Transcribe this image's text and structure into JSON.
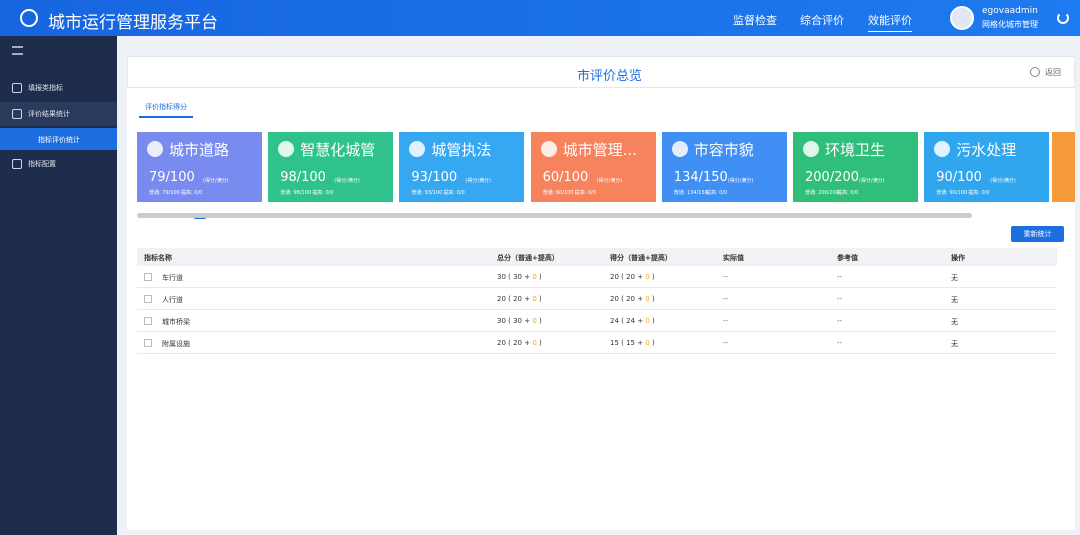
{
  "header": {
    "title": "城市运行管理服务平台",
    "nav": [
      "监督检查",
      "综合评价",
      "效能评价"
    ],
    "user": {
      "name": "egovaadmin",
      "role": "网格化城市管理"
    }
  },
  "sidebar": {
    "items": [
      {
        "label": "填报类指标"
      },
      {
        "label": "评价结果统计",
        "children": [
          "指标评价统计"
        ]
      },
      {
        "label": "指标配置"
      }
    ]
  },
  "page": {
    "title": "市评价总览",
    "back": "返回",
    "tab": "评价指标得分",
    "button": "重新统计"
  },
  "cards": [
    {
      "name": "城市道路",
      "score": "79/100",
      "unit": "(得分/满分)",
      "normal": "普通: 79/100",
      "extra": "提高: 0/0",
      "color": "#7a8bef"
    },
    {
      "name": "智慧化城管",
      "score": "98/100",
      "unit": "(得分/满分)",
      "normal": "普通: 98/100",
      "extra": "提高: 0/0",
      "color": "#2fc28c"
    },
    {
      "name": "城管执法",
      "score": "93/100",
      "unit": "(得分/满分)",
      "normal": "普通: 93/100",
      "extra": "提高: 0/0",
      "color": "#36a8f2"
    },
    {
      "name": "城市管理...",
      "score": "60/100",
      "unit": "(得分/满分)",
      "normal": "普通: 60/100",
      "extra": "提高: 0/0",
      "color": "#f7835e"
    },
    {
      "name": "市容市貌",
      "score": "134/150",
      "unit": "(得分/满分)",
      "normal": "普通: 134/150",
      "extra": "提高: 0/0",
      "color": "#3f8ff5"
    },
    {
      "name": "环境卫生",
      "score": "200/200",
      "unit": "(得分/满分)",
      "normal": "普通: 200/200",
      "extra": "提高: 0/0",
      "color": "#2fbf7a"
    },
    {
      "name": "污水处理",
      "score": "90/100",
      "unit": "(得分/满分)",
      "normal": "普通: 90/100",
      "extra": "提高: 0/0",
      "color": "#30a6ee"
    }
  ],
  "table": {
    "columns": [
      "指标名称",
      "总分（普通+提高）",
      "得分（普通+提高）",
      "实际值",
      "参考值",
      "操作"
    ],
    "rows": [
      {
        "name": "车行道",
        "total": [
          "30 ( 30 + ",
          "0",
          " )"
        ],
        "score": [
          "20 ( 20 + ",
          "0",
          " )"
        ],
        "actual": "--",
        "reference": "--",
        "action": "无"
      },
      {
        "name": "人行道",
        "total": [
          "20 ( 20 + ",
          "0",
          " )"
        ],
        "score": [
          "20 ( 20 + ",
          "0",
          " )"
        ],
        "actual": "--",
        "reference": "--",
        "action": "无"
      },
      {
        "name": "城市桥梁",
        "total": [
          "30 ( 30 + ",
          "0",
          " )"
        ],
        "score": [
          "24 ( 24 + ",
          "0",
          " )"
        ],
        "actual": "--",
        "reference": "--",
        "action": "无"
      },
      {
        "name": "附属设施",
        "total": [
          "20 ( 20 + ",
          "0",
          " )"
        ],
        "score": [
          "15 ( 15 + ",
          "0",
          " )"
        ],
        "actual": "--",
        "reference": "--",
        "action": "无"
      }
    ]
  }
}
